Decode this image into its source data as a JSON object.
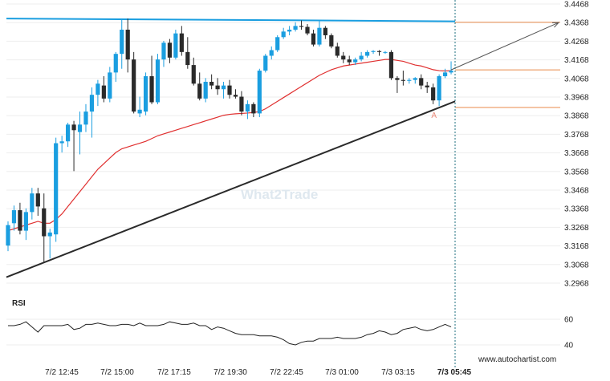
{
  "chart_data": {
    "type": "candlestick",
    "y_ticks": [
      "3.4468",
      "3.4368",
      "3.4268",
      "3.4168",
      "3.4068",
      "3.3968",
      "3.3868",
      "3.3768",
      "3.3668",
      "3.3568",
      "3.3468",
      "3.3368",
      "3.3268",
      "3.3168",
      "3.3068",
      "3.2968"
    ],
    "x_ticks": [
      "7/2 12:45",
      "7/2 15:00",
      "7/2 17:15",
      "7/2 19:30",
      "7/2 22:45",
      "7/3 01:00",
      "7/3 03:15",
      "7/3 05:45"
    ],
    "candles": [
      [
        3.317,
        3.33,
        3.314,
        3.328
      ],
      [
        3.329,
        3.3385,
        3.325,
        3.336
      ],
      [
        3.336,
        3.34,
        3.323,
        3.325
      ],
      [
        3.325,
        3.337,
        3.32,
        3.335
      ],
      [
        3.335,
        3.348,
        3.331,
        3.345
      ],
      [
        3.345,
        3.348,
        3.333,
        3.338
      ],
      [
        3.337,
        3.345,
        3.308,
        3.322
      ],
      [
        3.322,
        3.326,
        3.31,
        3.324
      ],
      [
        3.323,
        3.375,
        3.319,
        3.372
      ],
      [
        3.372,
        3.376,
        3.367,
        3.373
      ],
      [
        3.373,
        3.383,
        3.37,
        3.382
      ],
      [
        3.382,
        3.384,
        3.357,
        3.379
      ],
      [
        3.378,
        3.389,
        3.366,
        3.382
      ],
      [
        3.382,
        3.393,
        3.378,
        3.389
      ],
      [
        3.389,
        3.402,
        3.375,
        3.398
      ],
      [
        3.398,
        3.406,
        3.392,
        3.404
      ],
      [
        3.403,
        3.408,
        3.394,
        3.396
      ],
      [
        3.396,
        3.413,
        3.394,
        3.41
      ],
      [
        3.41,
        3.421,
        3.405,
        3.42
      ],
      [
        3.42,
        3.439,
        3.412,
        3.433
      ],
      [
        3.433,
        3.439,
        3.41,
        3.417
      ],
      [
        3.417,
        3.421,
        3.388,
        3.389
      ],
      [
        3.388,
        3.397,
        3.386,
        3.39
      ],
      [
        3.389,
        3.41,
        3.387,
        3.408
      ],
      [
        3.408,
        3.419,
        3.393,
        3.394
      ],
      [
        3.394,
        3.42,
        3.393,
        3.417
      ],
      [
        3.417,
        3.427,
        3.413,
        3.426
      ],
      [
        3.426,
        3.428,
        3.415,
        3.418
      ],
      [
        3.418,
        3.433,
        3.417,
        3.431
      ],
      [
        3.431,
        3.435,
        3.419,
        3.421
      ],
      [
        3.421,
        3.429,
        3.412,
        3.414
      ],
      [
        3.414,
        3.418,
        3.403,
        3.404
      ],
      [
        3.404,
        3.41,
        3.395,
        3.396
      ],
      [
        3.396,
        3.407,
        3.394,
        3.405
      ],
      [
        3.405,
        3.409,
        3.401,
        3.403
      ],
      [
        3.403,
        3.407,
        3.398,
        3.401
      ],
      [
        3.401,
        3.405,
        3.396,
        3.403
      ],
      [
        3.403,
        3.406,
        3.396,
        3.398
      ],
      [
        3.398,
        3.401,
        3.396,
        3.397
      ],
      [
        3.397,
        3.4,
        3.387,
        3.389
      ],
      [
        3.389,
        3.395,
        3.385,
        3.393
      ],
      [
        3.393,
        3.394,
        3.386,
        3.388
      ],
      [
        3.388,
        3.412,
        3.386,
        3.411
      ],
      [
        3.411,
        3.42,
        3.41,
        3.419
      ],
      [
        3.419,
        3.424,
        3.417,
        3.422
      ],
      [
        3.422,
        3.43,
        3.421,
        3.429
      ],
      [
        3.429,
        3.434,
        3.428,
        3.432
      ],
      [
        3.432,
        3.435,
        3.43,
        3.433
      ],
      [
        3.433,
        3.437,
        3.432,
        3.435
      ],
      [
        3.435,
        3.438,
        3.433,
        3.4345
      ],
      [
        3.4345,
        3.436,
        3.43,
        3.431
      ],
      [
        3.431,
        3.433,
        3.424,
        3.425
      ],
      [
        3.425,
        3.438,
        3.424,
        3.434
      ],
      [
        3.434,
        3.435,
        3.428,
        3.43
      ],
      [
        3.43,
        3.431,
        3.423,
        3.424
      ],
      [
        3.424,
        3.426,
        3.418,
        3.419
      ],
      [
        3.419,
        3.421,
        3.415,
        3.417
      ],
      [
        3.417,
        3.419,
        3.414,
        3.4155
      ],
      [
        3.4155,
        3.418,
        3.414,
        3.417
      ],
      [
        3.417,
        3.421,
        3.416,
        3.419
      ],
      [
        3.419,
        3.422,
        3.418,
        3.421
      ],
      [
        3.421,
        3.422,
        3.42,
        3.4215
      ],
      [
        3.4215,
        3.422,
        3.419,
        3.421
      ],
      [
        3.421,
        3.4215,
        3.42,
        3.421
      ],
      [
        3.421,
        3.422,
        3.406,
        3.407
      ],
      [
        3.407,
        3.408,
        3.399,
        3.406
      ],
      [
        3.406,
        3.411,
        3.403,
        3.4055
      ],
      [
        3.4055,
        3.407,
        3.404,
        3.406
      ],
      [
        3.406,
        3.4075,
        3.404,
        3.407
      ],
      [
        3.407,
        3.409,
        3.401,
        3.403
      ],
      [
        3.403,
        3.405,
        3.399,
        3.402
      ],
      [
        3.402,
        3.404,
        3.393,
        3.395
      ],
      [
        3.395,
        3.409,
        3.392,
        3.408
      ],
      [
        3.408,
        3.412,
        3.407,
        3.41
      ],
      [
        3.41,
        3.416,
        3.409,
        3.411
      ]
    ],
    "candle_colors": {
      "up": "#1a9ee0",
      "down": "#2a2a2a"
    },
    "moving_average": [
      3.325,
      3.326,
      3.327,
      3.328,
      3.329,
      3.33,
      3.329,
      3.329,
      3.331,
      3.334,
      3.338,
      3.342,
      3.346,
      3.35,
      3.354,
      3.358,
      3.361,
      3.364,
      3.367,
      3.369,
      3.37,
      3.371,
      3.372,
      3.373,
      3.3745,
      3.376,
      3.377,
      3.378,
      3.379,
      3.38,
      3.381,
      3.382,
      3.383,
      3.384,
      3.385,
      3.386,
      3.387,
      3.3875,
      3.3878,
      3.388,
      3.3882,
      3.3885,
      3.389,
      3.3905,
      3.3925,
      3.3945,
      3.3965,
      3.3985,
      3.4005,
      3.4025,
      3.4045,
      3.4065,
      3.4085,
      3.41,
      3.4115,
      3.4125,
      3.4135,
      3.414,
      3.4145,
      3.415,
      3.4155,
      3.416,
      3.4165,
      3.417,
      3.417,
      3.4165,
      3.416,
      3.415,
      3.414,
      3.4135,
      3.4125,
      3.4115,
      3.411,
      3.4108,
      3.411
    ],
    "moving_average_color": "#e03030",
    "resistance_line": {
      "from": [
        0,
        3.439
      ],
      "to": [
        74,
        3.4375
      ],
      "color": "#1a9ee0"
    },
    "support_line": {
      "from": [
        0,
        3.3
      ],
      "to": [
        74,
        3.3945
      ],
      "color": "#2a2a2a"
    },
    "horizontal_levels": [
      {
        "value": 3.437,
        "color": "#e98a4a"
      },
      {
        "value": 3.4114,
        "color": "#e98a4a"
      },
      {
        "value": 3.3912,
        "color": "#e98a4a"
      }
    ],
    "forecast_arrow": {
      "from": [
        74,
        3.4114
      ],
      "to": [
        86,
        3.4368
      ],
      "color": "#555555"
    },
    "pattern_mark": {
      "label": "A",
      "index": 71
    },
    "current_marker_index": 74,
    "rsi": {
      "title": "RSI",
      "y_ticks": [
        "60",
        "40"
      ],
      "values": [
        55,
        55,
        56,
        58,
        54,
        50,
        55,
        55,
        55,
        55,
        56,
        52,
        53,
        56,
        56,
        57,
        56,
        55,
        55,
        56,
        56,
        55,
        57,
        55,
        55,
        55,
        56,
        58,
        57,
        56,
        56,
        57,
        55,
        55,
        52,
        54,
        53,
        51,
        49,
        48,
        48,
        48,
        47,
        47,
        47,
        46,
        44,
        41,
        40,
        42,
        43,
        43,
        45,
        45,
        45,
        46,
        45,
        45,
        45,
        46,
        48,
        49,
        51,
        50,
        48,
        49,
        52,
        53,
        54,
        52,
        51,
        52,
        54,
        56,
        54
      ]
    },
    "watermark": "What2Trade",
    "credit": "www.autochartist.com"
  }
}
